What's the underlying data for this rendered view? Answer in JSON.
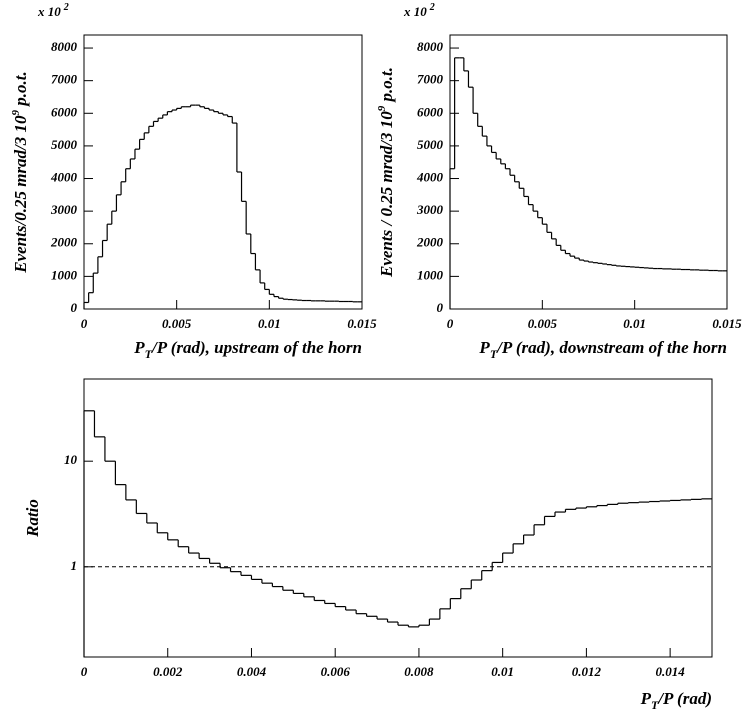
{
  "chart_data": [
    {
      "type": "histogram",
      "axis_multiplier": "x 10",
      "axis_multiplier_exp": "2",
      "y_label": "Events/0.25 mrad/3 10",
      "y_label_sup": "9",
      "y_label_rest": " p.o.t.",
      "x_label": "P",
      "x_label_sub": "T",
      "x_label_rest": "/P (rad), upstream of the horn",
      "bins": [
        0,
        0.00025,
        0.0005,
        0.00075,
        0.001,
        0.00125,
        0.0015,
        0.00175,
        0.002,
        0.00225,
        0.0025,
        0.00275,
        0.003,
        0.00325,
        0.0035,
        0.00375,
        0.004,
        0.00425,
        0.0045,
        0.00475,
        0.005,
        0.00525,
        0.0055,
        0.00575,
        0.006,
        0.00625,
        0.0065,
        0.00675,
        0.007,
        0.00725,
        0.0075,
        0.00775,
        0.008,
        0.00825,
        0.0085,
        0.00875,
        0.009,
        0.00925,
        0.0095,
        0.00975,
        0.01,
        0.01025,
        0.0105,
        0.01075,
        0.011,
        0.01125,
        0.0115,
        0.01175,
        0.012,
        0.01225,
        0.0125,
        0.01275,
        0.013,
        0.01325,
        0.0135,
        0.01375,
        0.014,
        0.01425,
        0.0145,
        0.01475,
        0.015
      ],
      "values": [
        200,
        500,
        1100,
        1600,
        2100,
        2600,
        3000,
        3500,
        3900,
        4300,
        4600,
        4900,
        5200,
        5400,
        5600,
        5750,
        5850,
        5950,
        6050,
        6100,
        6150,
        6200,
        6200,
        6250,
        6250,
        6200,
        6150,
        6100,
        6050,
        6000,
        5950,
        5900,
        5700,
        4200,
        3300,
        2300,
        1700,
        1200,
        800,
        600,
        450,
        380,
        330,
        300,
        290,
        280,
        270,
        260,
        260,
        250,
        250,
        250,
        240,
        240,
        240,
        230,
        230,
        230,
        220,
        220
      ],
      "color": "#000000",
      "xlim": [
        0,
        0.015
      ],
      "xticks": [
        0,
        0.005,
        0.01,
        0.015
      ],
      "ylim": [
        0,
        8400
      ],
      "yticks": [
        0,
        1000,
        2000,
        3000,
        4000,
        5000,
        6000,
        7000,
        8000
      ]
    },
    {
      "type": "histogram",
      "axis_multiplier": "x 10",
      "axis_multiplier_exp": "2",
      "y_label": "Events / 0.25 mrad/3 10",
      "y_label_sup": "9",
      "y_label_rest": " p.o.t.",
      "x_label": "P",
      "x_label_sub": "T",
      "x_label_rest": "/P (rad), downstream of the horn",
      "bins": [
        0,
        0.00025,
        0.0005,
        0.00075,
        0.001,
        0.00125,
        0.0015,
        0.00175,
        0.002,
        0.00225,
        0.0025,
        0.00275,
        0.003,
        0.00325,
        0.0035,
        0.00375,
        0.004,
        0.00425,
        0.0045,
        0.00475,
        0.005,
        0.00525,
        0.0055,
        0.00575,
        0.006,
        0.00625,
        0.0065,
        0.00675,
        0.007,
        0.00725,
        0.0075,
        0.00775,
        0.008,
        0.00825,
        0.0085,
        0.00875,
        0.009,
        0.00925,
        0.0095,
        0.00975,
        0.01,
        0.01025,
        0.0105,
        0.01075,
        0.011,
        0.01125,
        0.0115,
        0.01175,
        0.012,
        0.01225,
        0.0125,
        0.01275,
        0.013,
        0.01325,
        0.0135,
        0.01375,
        0.014,
        0.01425,
        0.0145,
        0.01475,
        0.015
      ],
      "values": [
        4300,
        7700,
        7700,
        7300,
        6800,
        6000,
        5600,
        5300,
        5000,
        4800,
        4600,
        4450,
        4300,
        4100,
        3900,
        3700,
        3450,
        3200,
        3000,
        2800,
        2600,
        2350,
        2150,
        1950,
        1800,
        1700,
        1620,
        1560,
        1500,
        1470,
        1440,
        1420,
        1400,
        1380,
        1360,
        1340,
        1320,
        1310,
        1300,
        1290,
        1280,
        1270,
        1260,
        1250,
        1240,
        1240,
        1230,
        1230,
        1220,
        1220,
        1210,
        1210,
        1200,
        1200,
        1190,
        1190,
        1180,
        1180,
        1170,
        1170
      ],
      "color": "#000000",
      "xlim": [
        0,
        0.015
      ],
      "xticks": [
        0,
        0.005,
        0.01,
        0.015
      ],
      "ylim": [
        0,
        8400
      ],
      "yticks": [
        0,
        1000,
        2000,
        3000,
        4000,
        5000,
        6000,
        7000,
        8000
      ]
    },
    {
      "type": "histogram",
      "y_label": "Ratio",
      "x_label": "P",
      "x_label_sub": "T",
      "x_label_rest": "/P (rad)",
      "bins": [
        0,
        0.00025,
        0.0005,
        0.00075,
        0.001,
        0.00125,
        0.0015,
        0.00175,
        0.002,
        0.00225,
        0.0025,
        0.00275,
        0.003,
        0.00325,
        0.0035,
        0.00375,
        0.004,
        0.00425,
        0.0045,
        0.00475,
        0.005,
        0.00525,
        0.0055,
        0.00575,
        0.006,
        0.00625,
        0.0065,
        0.00675,
        0.007,
        0.00725,
        0.0075,
        0.00775,
        0.008,
        0.00825,
        0.0085,
        0.00875,
        0.009,
        0.00925,
        0.0095,
        0.00975,
        0.01,
        0.01025,
        0.0105,
        0.01075,
        0.011,
        0.01125,
        0.0115,
        0.01175,
        0.012,
        0.01225,
        0.0125,
        0.01275,
        0.013,
        0.01325,
        0.0135,
        0.01375,
        0.014,
        0.01425,
        0.0145,
        0.01475,
        0.015
      ],
      "values": [
        30,
        17,
        10,
        6,
        4.3,
        3.2,
        2.6,
        2.1,
        1.8,
        1.55,
        1.35,
        1.2,
        1.08,
        0.98,
        0.9,
        0.83,
        0.76,
        0.7,
        0.65,
        0.6,
        0.56,
        0.52,
        0.48,
        0.45,
        0.42,
        0.39,
        0.36,
        0.34,
        0.32,
        0.3,
        0.28,
        0.27,
        0.28,
        0.32,
        0.4,
        0.5,
        0.62,
        0.75,
        0.92,
        1.1,
        1.35,
        1.65,
        2.0,
        2.5,
        3.0,
        3.3,
        3.5,
        3.6,
        3.7,
        3.8,
        3.9,
        4.0,
        4.05,
        4.1,
        4.15,
        4.2,
        4.25,
        4.3,
        4.35,
        4.4
      ],
      "color": "#000000",
      "log_y": true,
      "reference_line": 1,
      "xlim": [
        0,
        0.015
      ],
      "xticks": [
        0,
        0.002,
        0.004,
        0.006,
        0.008,
        0.01,
        0.012,
        0.014
      ],
      "ylim": [
        0.14,
        60
      ],
      "yticks": [
        1,
        10
      ]
    }
  ]
}
